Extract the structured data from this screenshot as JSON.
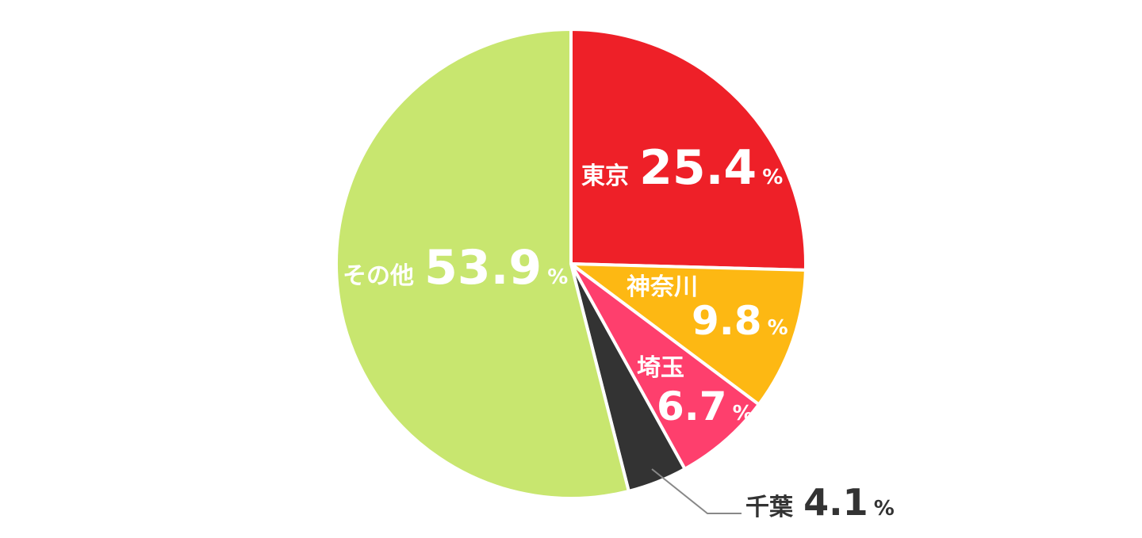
{
  "chart_data": {
    "type": "pie",
    "unit": "%",
    "slices": [
      {
        "label": "東京",
        "value": 25.4,
        "display": "25.4",
        "color": "#ee2028"
      },
      {
        "label": "神奈川",
        "value": 9.8,
        "display": "9.8",
        "color": "#fdb813"
      },
      {
        "label": "埼玉",
        "value": 6.7,
        "display": "6.7",
        "color": "#fe3f6d"
      },
      {
        "label": "千葉",
        "value": 4.1,
        "display": "4.1",
        "color": "#333333"
      },
      {
        "label": "その他",
        "value": 53.9,
        "display": "53.9",
        "color": "#c8e66f"
      }
    ]
  }
}
